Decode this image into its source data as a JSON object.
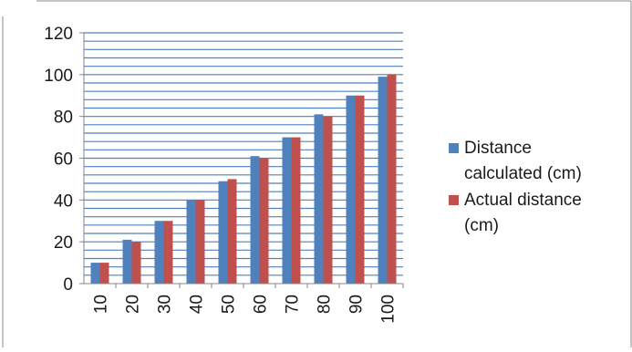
{
  "chart_data": {
    "type": "bar",
    "title": "",
    "xlabel": "",
    "ylabel": "",
    "categories": [
      "10",
      "20",
      "30",
      "40",
      "50",
      "60",
      "70",
      "80",
      "90",
      "100"
    ],
    "series": [
      {
        "name": "Distance calculated (cm)",
        "color": "#4f81bd",
        "values": [
          10,
          21,
          30,
          40,
          49,
          61,
          70,
          81,
          90,
          99
        ]
      },
      {
        "name": "Actual distance (cm)",
        "color": "#c0504d",
        "values": [
          10,
          20,
          30,
          40,
          50,
          60,
          70,
          80,
          90,
          100
        ]
      }
    ],
    "ylim": [
      0,
      120
    ],
    "yticks": [
      0,
      20,
      40,
      60,
      80,
      100,
      120
    ],
    "minor_gridline_step": 4,
    "grid": true,
    "gridline_color": "#4f81bd",
    "legend_position": "right",
    "legend": {
      "lines": [
        [
          "Distance",
          "calculated (cm)"
        ],
        [
          "Actual distance",
          "(cm)"
        ]
      ]
    }
  }
}
